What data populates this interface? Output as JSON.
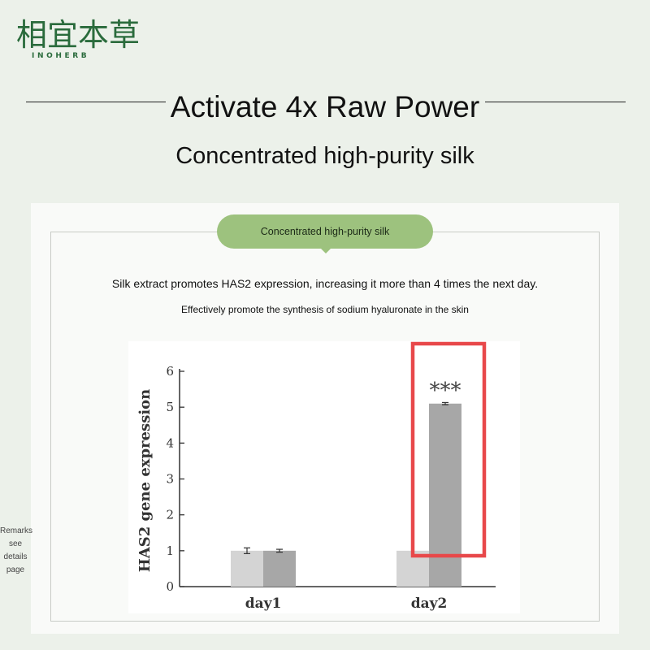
{
  "brand": {
    "name_cn": "相宜本草",
    "name_en": "INOHERB"
  },
  "heading": {
    "title": "Activate 4x Raw Power",
    "subtitle": "Concentrated high-purity silk"
  },
  "panel": {
    "pill_label": "Concentrated high-purity silk",
    "claim": "Silk extract promotes HAS2 expression, increasing it more than 4 times the next day.",
    "claim_sub": "Effectively promote the synthesis of sodium hyaluronate in the skin"
  },
  "remarks": "Remarks see details page",
  "colors": {
    "brand_green": "#2a6b3c",
    "pill_green": "#9dc27e",
    "highlight_red": "#e8484a",
    "bar_light": "#d4d4d4",
    "bar_dark": "#a7a7a7"
  },
  "chart_data": {
    "type": "bar",
    "categories": [
      "day1",
      "day2"
    ],
    "series": [
      {
        "values": [
          1.0,
          1.0
        ],
        "errors": [
          0.08,
          0.0
        ],
        "color": "#d4d4d4"
      },
      {
        "values": [
          1.0,
          5.1
        ],
        "errors": [
          0.04,
          0.03
        ],
        "color": "#a7a7a7"
      }
    ],
    "ylabel": "HAS2 gene expression",
    "ylim": [
      0,
      6
    ],
    "yticks": [
      "0",
      "1",
      "2",
      "3",
      "4",
      "5",
      "6"
    ],
    "annotations": [
      {
        "category": "day2",
        "text": "***"
      }
    ],
    "highlight": "day2",
    "grid": false
  }
}
